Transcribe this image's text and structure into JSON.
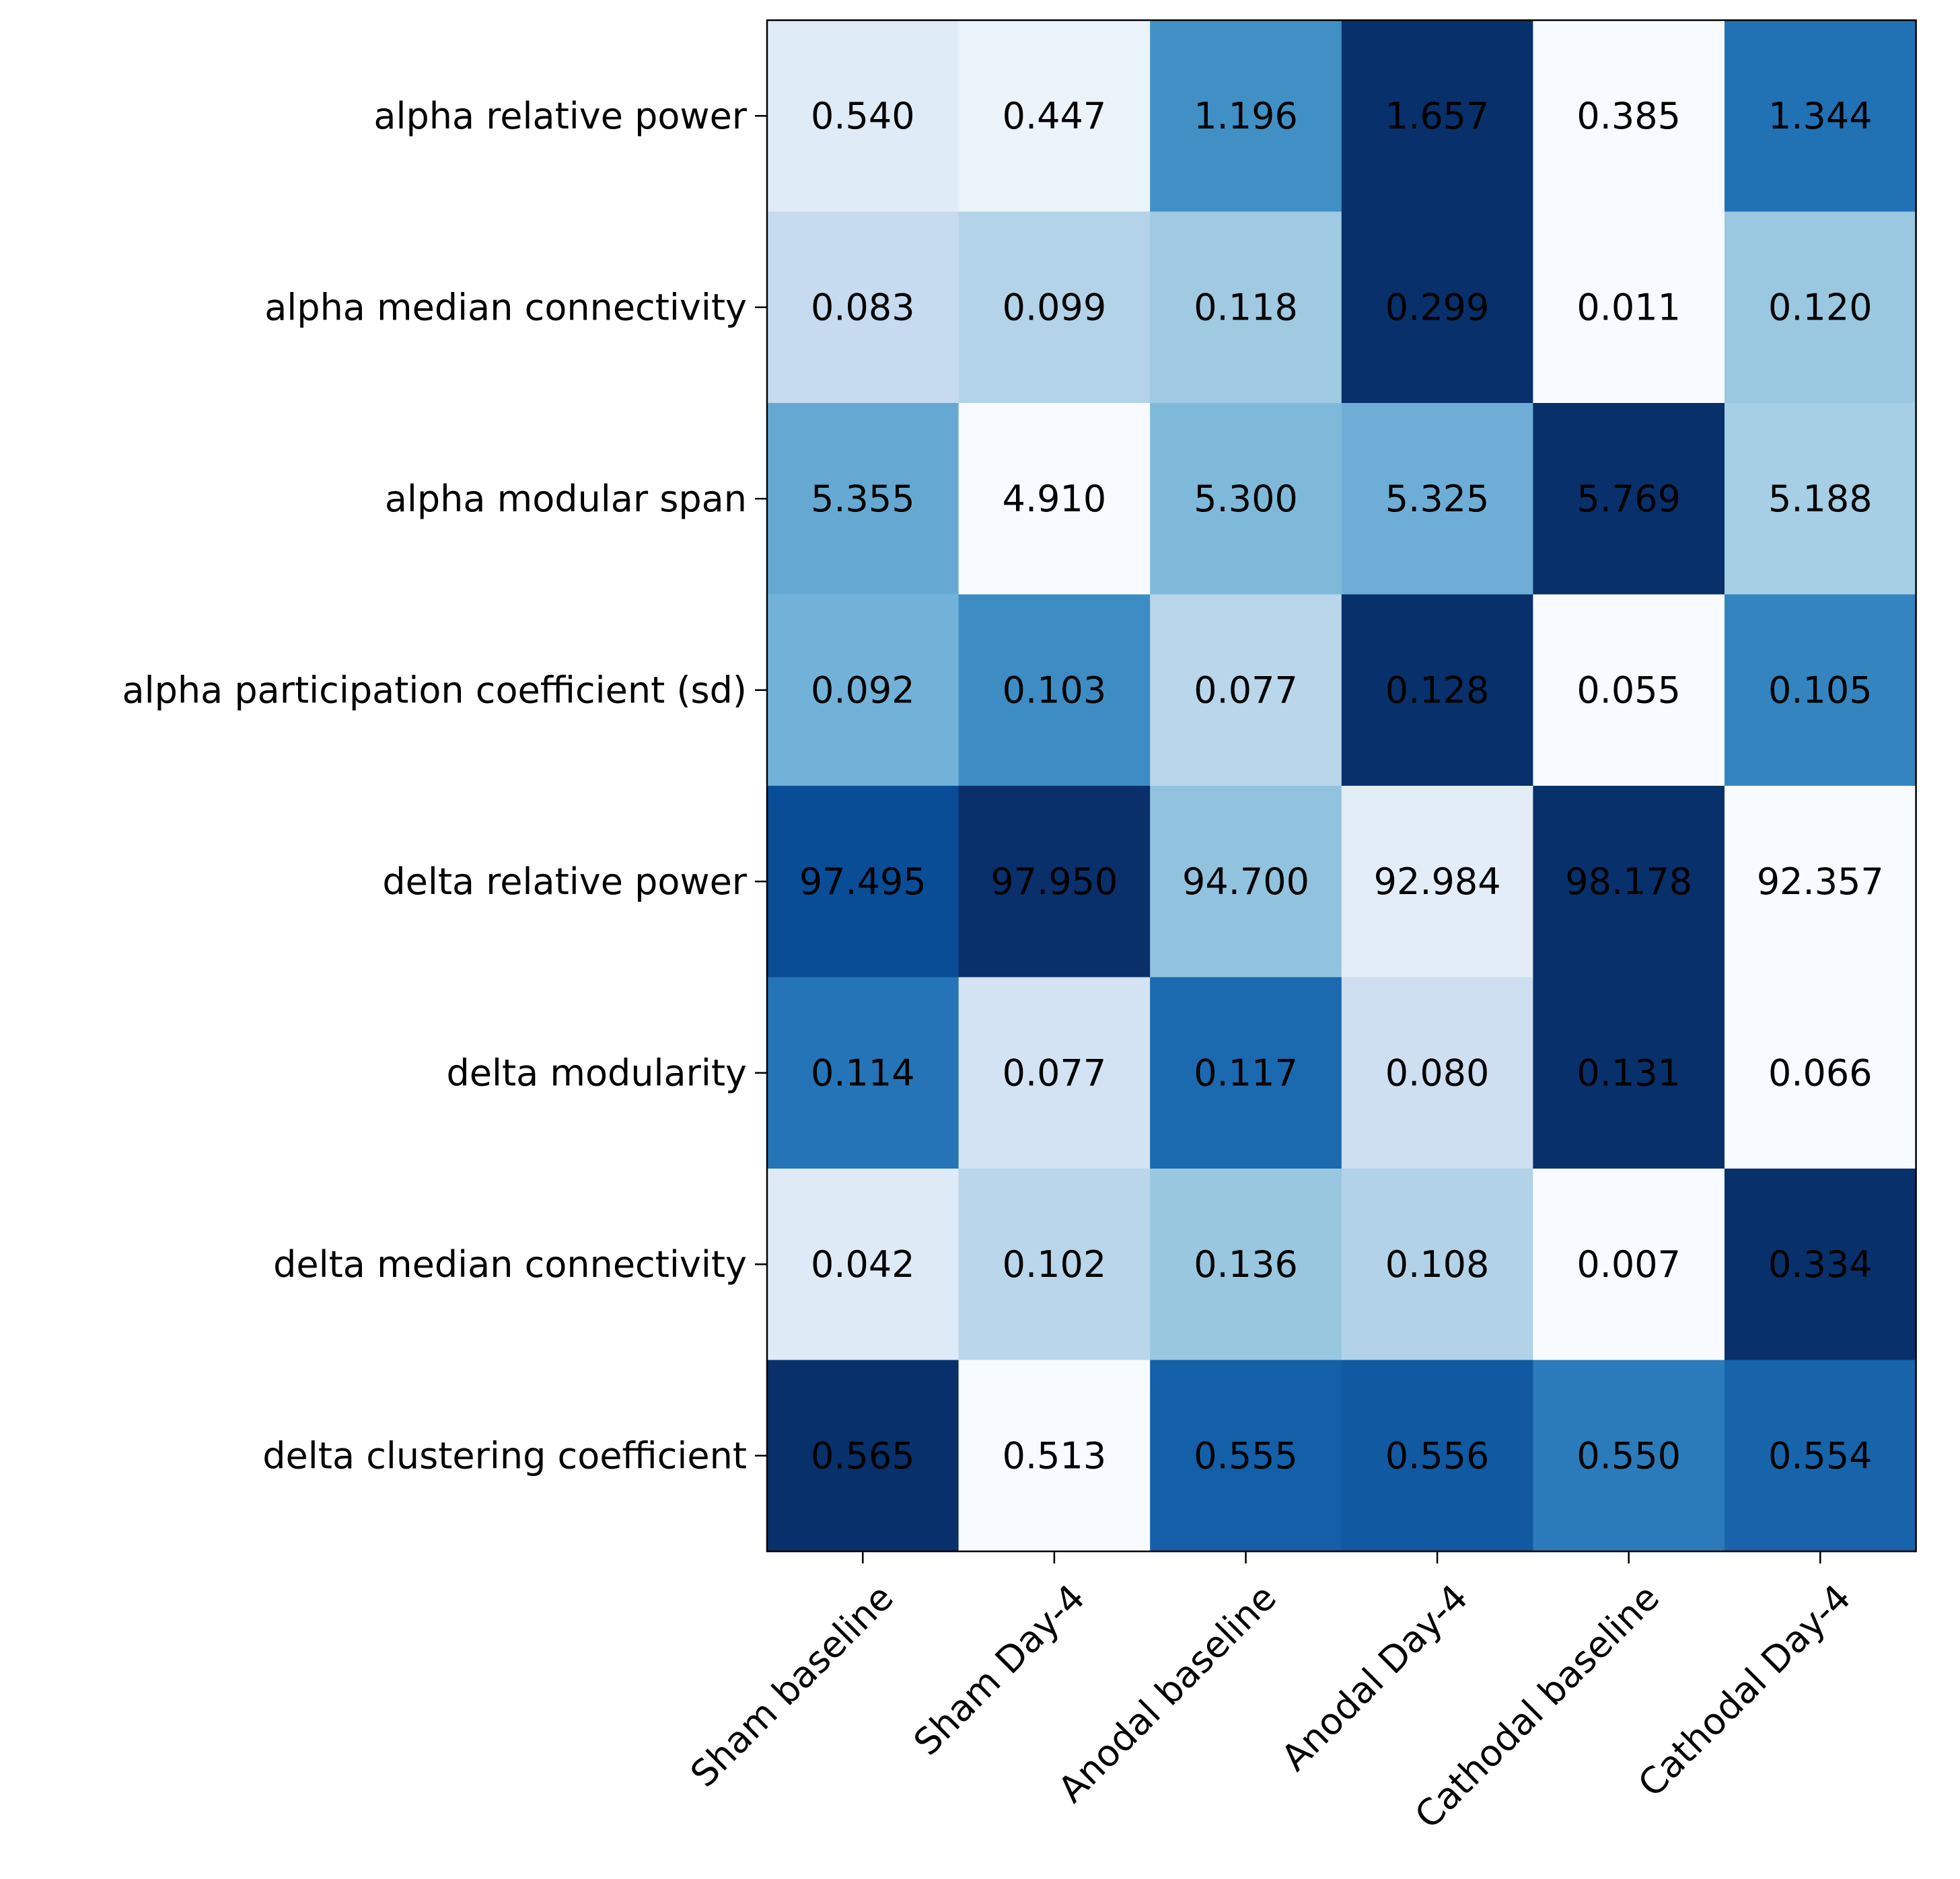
{
  "chart_data": {
    "type": "heatmap",
    "colormap": "Blues",
    "color_scaling": "per-row",
    "rows": [
      "alpha relative power",
      "alpha median connectivity",
      "alpha modular span",
      "alpha participation coefficient (sd)",
      "delta relative power",
      "delta modularity",
      "delta median connectivity",
      "delta clustering coefficient"
    ],
    "columns": [
      "Sham baseline",
      "Sham Day-4",
      "Anodal baseline",
      "Anodal Day-4",
      "Cathodal baseline",
      "Cathodal Day-4"
    ],
    "values": [
      [
        0.54,
        0.447,
        1.196,
        1.657,
        0.385,
        1.344
      ],
      [
        0.083,
        0.099,
        0.118,
        0.299,
        0.011,
        0.12
      ],
      [
        5.355,
        4.91,
        5.3,
        5.325,
        5.769,
        5.188
      ],
      [
        0.092,
        0.103,
        0.077,
        0.128,
        0.055,
        0.105
      ],
      [
        97.495,
        97.95,
        94.7,
        92.984,
        98.178,
        92.357
      ],
      [
        0.114,
        0.077,
        0.117,
        0.08,
        0.131,
        0.066
      ],
      [
        0.042,
        0.102,
        0.136,
        0.108,
        0.007,
        0.334
      ],
      [
        0.565,
        0.513,
        0.555,
        0.556,
        0.55,
        0.554
      ]
    ],
    "value_labels": [
      [
        "0.540",
        "0.447",
        "1.196",
        "1.657",
        "0.385",
        "1.344"
      ],
      [
        "0.083",
        "0.099",
        "0.118",
        "0.299",
        "0.011",
        "0.120"
      ],
      [
        "5.355",
        "4.910",
        "5.300",
        "5.325",
        "5.769",
        "5.188"
      ],
      [
        "0.092",
        "0.103",
        "0.077",
        "0.128",
        "0.055",
        "0.105"
      ],
      [
        "97.495",
        "97.950",
        "94.700",
        "92.984",
        "98.178",
        "92.357"
      ],
      [
        "0.114",
        "0.077",
        "0.117",
        "0.080",
        "0.131",
        "0.066"
      ],
      [
        "0.042",
        "0.102",
        "0.136",
        "0.108",
        "0.007",
        "0.334"
      ],
      [
        "0.565",
        "0.513",
        "0.555",
        "0.556",
        "0.550",
        "0.554"
      ]
    ],
    "cell_colors": [
      [
        "#dfebf7",
        "#ebf3fb",
        "#4090c5",
        "#08306b",
        "#f7fbff",
        "#2171b5"
      ],
      [
        "#c6dbef",
        "#b3d3e8",
        "#9fcae1",
        "#08306b",
        "#f7fbff",
        "#9ac8e0"
      ],
      [
        "#65a9d3",
        "#f7fbff",
        "#7fb9da",
        "#6eaed6",
        "#08306b",
        "#a6cee4"
      ],
      [
        "#72b2d8",
        "#3d8dc4",
        "#bad6eb",
        "#08306b",
        "#f7fbff",
        "#3484bf"
      ],
      [
        "#084d96",
        "#0a306b",
        "#92c3de",
        "#e2edf8",
        "#08306b",
        "#f7fbff"
      ],
      [
        "#2474b7",
        "#d3e3f3",
        "#1b69af",
        "#cddff1",
        "#08306b",
        "#f7fbff"
      ],
      [
        "#deebf7",
        "#b9d6ea",
        "#98c7df",
        "#b2d2e8",
        "#f7fbff",
        "#08306b"
      ],
      [
        "#08306b",
        "#f7fbff",
        "#1460a8",
        "#1159a1",
        "#2b7bba",
        "#1764ab"
      ]
    ],
    "title": "",
    "xlabel": "",
    "ylabel": "",
    "legend": "none",
    "grid": false
  }
}
